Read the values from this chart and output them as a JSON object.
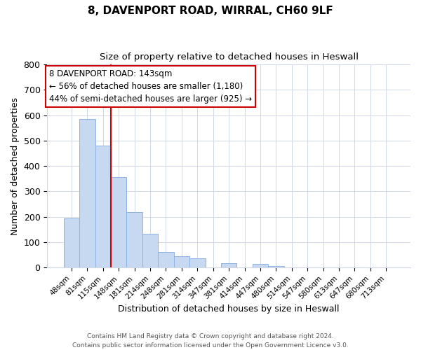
{
  "title": "8, DAVENPORT ROAD, WIRRAL, CH60 9LF",
  "subtitle": "Size of property relative to detached houses in Heswall",
  "xlabel": "Distribution of detached houses by size in Heswall",
  "ylabel": "Number of detached properties",
  "footnote1": "Contains HM Land Registry data © Crown copyright and database right 2024.",
  "footnote2": "Contains public sector information licensed under the Open Government Licence v3.0.",
  "bar_labels": [
    "48sqm",
    "81sqm",
    "115sqm",
    "148sqm",
    "181sqm",
    "214sqm",
    "248sqm",
    "281sqm",
    "314sqm",
    "347sqm",
    "381sqm",
    "414sqm",
    "447sqm",
    "480sqm",
    "514sqm",
    "547sqm",
    "580sqm",
    "613sqm",
    "647sqm",
    "680sqm",
    "713sqm"
  ],
  "bar_values": [
    193,
    585,
    480,
    357,
    218,
    133,
    61,
    44,
    37,
    0,
    18,
    0,
    14,
    7,
    0,
    0,
    0,
    0,
    0,
    0,
    0
  ],
  "bar_color": "#c6d9f0",
  "bar_edge_color": "#8db3e2",
  "ylim": [
    0,
    800
  ],
  "yticks": [
    0,
    100,
    200,
    300,
    400,
    500,
    600,
    700,
    800
  ],
  "vline_color": "#cc0000",
  "annotation_title": "8 DAVENPORT ROAD: 143sqm",
  "annotation_line1": "← 56% of detached houses are smaller (1,180)",
  "annotation_line2": "44% of semi-detached houses are larger (925) →",
  "background_color": "#ffffff",
  "grid_color": "#d0d8e8"
}
